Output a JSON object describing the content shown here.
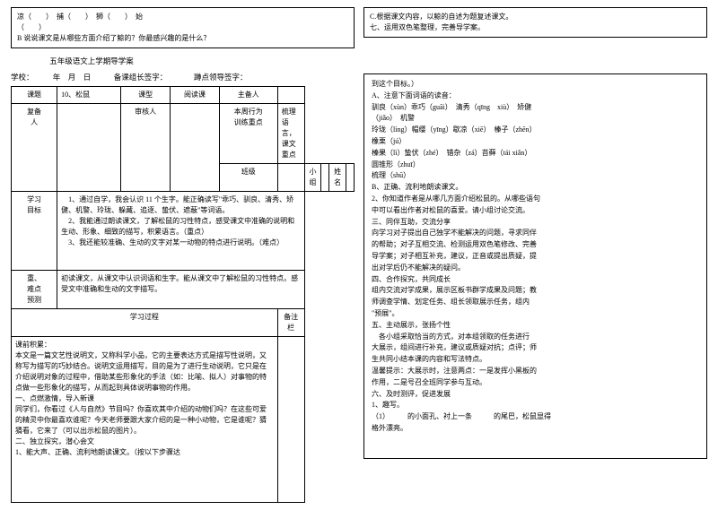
{
  "top_left": {
    "line1": "凉（　　）　捕（　　）　狮（　　）　始",
    "line2": "（　　）",
    "line3": "B 说说课文是从哪些方面介绍了鲸的？你最感兴趣的是什么？"
  },
  "top_right": {
    "line1": "C.根据课文内容，以鲸的自述为题复述课文。",
    "line2": "七、运用双色笔整理，完善导学案。"
  },
  "mid_header": {
    "title": "五年级语文上学期导学案",
    "school_line": "学校：　　　年　月　日　　　备课组长签字：　　　　蹲点领导签字："
  },
  "info_table": {
    "r1c1": "课题",
    "r1c2": "10、松鼠",
    "r1c3": "课型",
    "r1c4": "阅读课",
    "r1c5": "主备人",
    "r2c1": "复备",
    "r2c2": "审核人",
    "r2c3": "本周行为",
    "r2c4": "梳理语言，",
    "r3c1": "人",
    "r3c2": "训练重点",
    "r3c3": "课文重点",
    "r4c1": "班级",
    "r4c2": "小组",
    "r4c3": "姓名",
    "goals_label": "学习\n目标",
    "goals": "　1、通过自学，我会认识 11 个生字。能正确读写\"乖巧、驯良、清秀、矫健、机警、玲珑、躲藏、追逐、蛰伏、遮蔽\"等词语。\n　2、我能通过朗读课文，了解松鼠的习性特点，感受课文中准确的说明和生动、形象、细致的描写，积累语言。（重点）\n　3、我还能较准确、生动的文字对某一动物的特点进行说明。（难点）",
    "hard_label": "重、\n难点\n预测",
    "hard": "初读课文，从课文中认识词语和生字。能从课文中了解松鼠的习性特点。感受文中准确和生动的文字描写。",
    "process_h1": "学习过程",
    "process_h2": "备注栏",
    "process": "课前积累：\n本文是一篇文艺性说明文，又称科学小品，它的主要表达方式是描写性说明，又称写为描写的巧妙结合。说明文运用描写，目的是为了进行生动说明，它只是在介绍说明对象的过程中，借助某些形象化的手法（如：比喻、拟人）对事物的特点做一些形象化的描写，从而起到具体说明事物的作用。\n一、点燃激情，导入新课\n同学们，你看过《人与自然》节目吗？你喜欢其中介绍的动物们吗？在这些可爱的精灵中你最喜欢谁呢？今天老师要跟大家介绍的是一种小动物，它是谁呢？猜猜看，它来了（可以出示松鼠的图片）。\n二、独立探究，潜心会文\n1、能大声、正确、流利地朗读课文。（按以下步骤达"
  },
  "right_panel": {
    "lines": [
      "到这个目标。）",
      "A、注意下面词语的读音：",
      "驯良（xùn）乖巧（guāi）　清秀（qīng　xiù）　矫健",
      "（jiǎo）　机警",
      "玲珑（líng）帽缨（yīng）歇凉（xiē）　榛子（zhēn）",
      "橡栗（jú）",
      "榛果（lì）蛰伏（zhé）　错杂（zá）苔藓（tái xiǎn）",
      "圆锥形（zhuī）",
      "梳理（shū）",
      "B、正确、流利地朗读课文。",
      "2、你知道作者是从哪几方面介绍松鼠的。从哪些语句",
      "中可以看出作者对松鼠的喜爱。请小组讨论交流。",
      "三、同伴互助，交流分享",
      "向学习对子提出自己独学不能解决的问题，寻求同伴",
      "的帮助；对子互相交流、检测运用双色笔修改、完善",
      "导学案；对子相互补充，建议，正音或提出质疑，提",
      "出对学后仍不能解决的疑问。",
      "四、合作探究，共同成长",
      "组内交流对学成果，展示区板书群学成果及问题；教",
      "师调查学情、划定任务、组长领取展示任务，组内",
      "\"预展\"。",
      "五、主动展示，张扬个性",
      "　各小组采取恰当的方式，对本组领取的任务进行",
      "大展示，组间进行补充，建议或质疑对抗；点评；师",
      "生共同小结本课的内容和写法特点。",
      "温馨提示：大展示时，注意两点：一是发挥小黑板的",
      "作用，二是号召全班同学参与互动。",
      "六、及时测评，促进发展",
      "1、趣写。",
      "（1）　　　的小面孔、衬上一条　　　的尾巴，松鼠显得",
      "格外漂亮。"
    ]
  }
}
